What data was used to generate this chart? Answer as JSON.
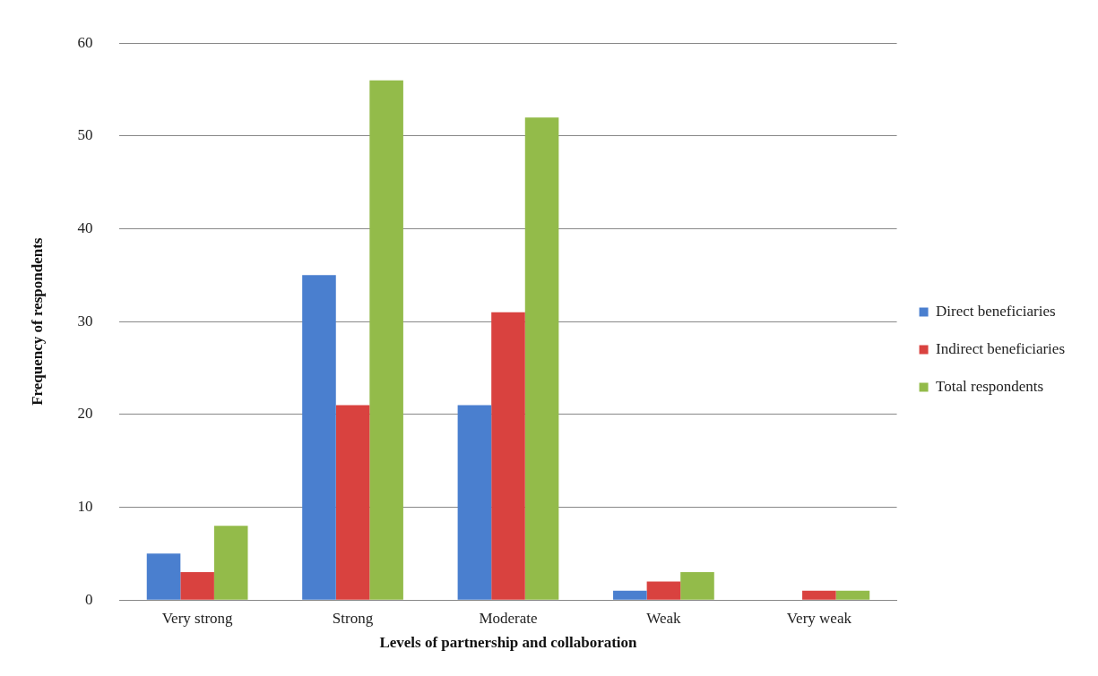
{
  "chart_data": {
    "type": "bar",
    "xlabel": "Levels of partnership and collaboration",
    "ylabel": "Frequency of respondents",
    "categories": [
      "Very strong",
      "Strong",
      "Moderate",
      "Weak",
      "Very weak"
    ],
    "series": [
      {
        "name": "Direct beneficiaries",
        "color": "#4a7fcf",
        "values": [
          5,
          35,
          21,
          1,
          0
        ]
      },
      {
        "name": "Indirect beneficiaries",
        "color": "#d9423f",
        "values": [
          3,
          21,
          31,
          2,
          1
        ]
      },
      {
        "name": "Total respondents",
        "color": "#93bb4a",
        "values": [
          8,
          56,
          52,
          3,
          1
        ]
      }
    ],
    "ylim": [
      0,
      60
    ],
    "yticks": [
      0,
      10,
      20,
      30,
      40,
      50,
      60
    ],
    "grid": "y",
    "legend": "right"
  }
}
